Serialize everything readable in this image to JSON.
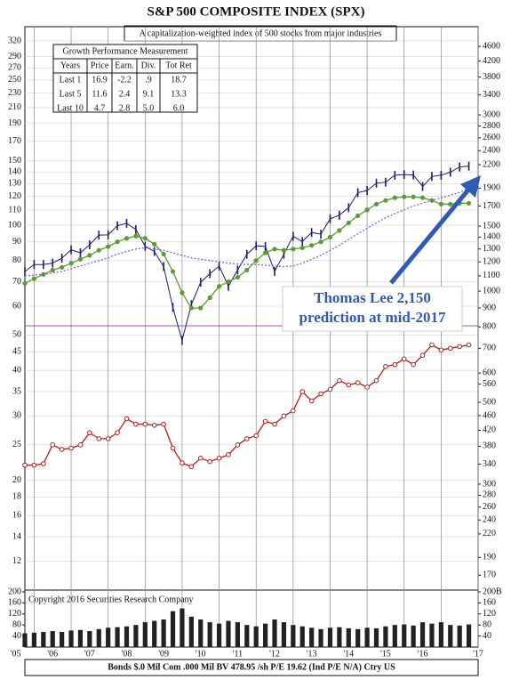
{
  "chart_data": [
    {
      "type": "line",
      "title": "S&P 500 COMPOSITE INDEX (SPX)",
      "subtitle": "A capitalization-weighted index of 500 stocks from major industries",
      "annotation": "Thomas Lee 2,150",
      "annotation_2": "prediction at mid-2017",
      "footer": "Bonds  $.0 Mil Com .000 Mil BV 478.95 /sh  P/E 19.62 (Ind  P/E N/A) Ctry US",
      "log_scale": true,
      "grid": true,
      "xlim": [
        2004.75,
        2017.0
      ],
      "xticks": [
        {
          "value": 2005,
          "label": "'05"
        },
        {
          "value": 2006,
          "label": "'06"
        },
        {
          "value": 2007,
          "label": "'07"
        },
        {
          "value": 2008,
          "label": "'08"
        },
        {
          "value": 2009,
          "label": "'09"
        },
        {
          "value": 2010,
          "label": "'10"
        },
        {
          "value": 2011,
          "label": "'11"
        },
        {
          "value": 2012,
          "label": "'12"
        },
        {
          "value": 2013,
          "label": "'13"
        },
        {
          "value": 2014,
          "label": "'14"
        },
        {
          "value": 2015,
          "label": "'15"
        },
        {
          "value": 2016,
          "label": "'16"
        },
        {
          "value": 2017,
          "label": "'17"
        }
      ],
      "ylim": [
        10,
        350
      ],
      "yticks": [
        320,
        290,
        270,
        250,
        230,
        210,
        190,
        170,
        150,
        140,
        130,
        120,
        110,
        100,
        90,
        80,
        70,
        60,
        50,
        45,
        40,
        35,
        30,
        25,
        20,
        18,
        16,
        14,
        12
      ],
      "y2lim": [
        155,
        5200
      ],
      "y2ticks": [
        4600,
        4200,
        3800,
        3400,
        3000,
        2800,
        2600,
        2400,
        2200,
        1900,
        1700,
        1500,
        1400,
        1300,
        1200,
        1100,
        1000,
        900,
        800,
        700,
        600,
        560,
        500,
        460,
        420,
        380,
        340,
        300,
        280,
        260,
        240,
        220,
        190,
        170
      ],
      "hline": 53,
      "hline_color": "#8a4a8a",
      "x": [
        2004.75,
        2005,
        2005.25,
        2005.5,
        2005.75,
        2006,
        2006.25,
        2006.5,
        2006.75,
        2007,
        2007.25,
        2007.5,
        2007.75,
        2008,
        2008.25,
        2008.5,
        2008.75,
        2009,
        2009.25,
        2009.5,
        2009.75,
        2010,
        2010.25,
        2010.5,
        2010.75,
        2011,
        2011.25,
        2011.5,
        2011.75,
        2012,
        2012.25,
        2012.5,
        2012.75,
        2013,
        2013.25,
        2013.5,
        2013.75,
        2014,
        2014.25,
        2014.5,
        2014.75,
        2015,
        2015.25,
        2015.5,
        2015.75,
        2016,
        2016.25,
        2016.5,
        2016.75
      ],
      "series": [
        {
          "color": "#1c1c6e",
          "axis": "y2",
          "marker": "bar",
          "values": [
            1130,
            1180,
            1180,
            1191,
            1228,
            1294,
            1270,
            1335,
            1418,
            1420,
            1503,
            1526,
            1468,
            1322,
            1280,
            1166,
            903,
            735,
            919,
            1057,
            1115,
            1169,
            1031,
            1141,
            1258,
            1326,
            1321,
            1131,
            1258,
            1408,
            1362,
            1441,
            1426,
            1569,
            1606,
            1682,
            1848,
            1872,
            1960,
            1972,
            2059,
            2068,
            2063,
            1920,
            2044,
            2060,
            2099,
            2168,
            2180
          ]
        },
        {
          "color": "#5b9b32",
          "axis": "y2",
          "marker": "dot",
          "values": [
            1050,
            1080,
            1110,
            1140,
            1160,
            1190,
            1220,
            1250,
            1290,
            1320,
            1360,
            1390,
            1410,
            1390,
            1340,
            1260,
            1130,
            990,
            900,
            900,
            960,
            1030,
            1060,
            1090,
            1140,
            1210,
            1270,
            1300,
            1290,
            1300,
            1310,
            1330,
            1360,
            1400,
            1460,
            1530,
            1600,
            1660,
            1720,
            1760,
            1790,
            1800,
            1800,
            1790,
            1760,
            1720,
            1720,
            1730,
            1730
          ]
        },
        {
          "color": "#6a6ae6",
          "axis": "y2",
          "marker": "none",
          "dashed": true,
          "values": [
            1100,
            1105,
            1110,
            1120,
            1130,
            1150,
            1170,
            1190,
            1210,
            1230,
            1260,
            1280,
            1300,
            1310,
            1300,
            1290,
            1270,
            1250,
            1230,
            1220,
            1210,
            1200,
            1190,
            1185,
            1180,
            1180,
            1175,
            1170,
            1165,
            1170,
            1190,
            1220,
            1250,
            1290,
            1330,
            1380,
            1430,
            1480,
            1530,
            1580,
            1620,
            1660,
            1700,
            1730,
            1760,
            1790,
            1820,
            1850,
            1900
          ]
        },
        {
          "color": "#b02020",
          "axis": "y",
          "marker": "circle",
          "values": [
            22,
            22,
            22.2,
            25,
            24.3,
            24.5,
            25,
            27,
            26,
            26,
            27,
            29.5,
            28.5,
            28.5,
            28.3,
            28.5,
            24.5,
            22.3,
            21.8,
            23,
            22.5,
            23,
            23.5,
            25,
            26,
            26.5,
            29,
            28.5,
            30,
            31,
            35,
            33,
            34.5,
            35.5,
            37.5,
            36.5,
            37,
            36,
            37.5,
            41,
            41.5,
            43,
            41.5,
            44,
            47,
            45.5,
            46,
            46.5,
            47
          ]
        }
      ],
      "table": {
        "title": "Growth Performance Measurement",
        "header": [
          "Years",
          "Price",
          "Earn.",
          "Div.",
          "Tot Ret"
        ],
        "rows": [
          [
            "Last 1",
            "16.9",
            "-2.2",
            ".9",
            "18.7"
          ],
          [
            "Last 5",
            "11.6",
            "2.4",
            "9.1",
            "13.3"
          ],
          [
            "Last 10",
            "4.7",
            "2.8",
            "5.0",
            "6.0"
          ]
        ]
      }
    },
    {
      "type": "bar",
      "annotation": "Copyright 2016 Securities Research Company",
      "color": "#222",
      "xlim": [
        2004.75,
        2017.0
      ],
      "x": [
        2004.75,
        2005,
        2005.25,
        2005.5,
        2005.75,
        2006,
        2006.25,
        2006.5,
        2006.75,
        2007,
        2007.25,
        2007.5,
        2007.75,
        2008,
        2008.25,
        2008.5,
        2008.75,
        2009,
        2009.25,
        2009.5,
        2009.75,
        2010,
        2010.25,
        2010.5,
        2010.75,
        2011,
        2011.25,
        2011.5,
        2011.75,
        2012,
        2012.25,
        2012.5,
        2012.75,
        2013,
        2013.25,
        2013.5,
        2013.75,
        2014,
        2014.25,
        2014.5,
        2014.75,
        2015,
        2015.25,
        2015.5,
        2015.75,
        2016,
        2016.25,
        2016.5,
        2016.75
      ],
      "values": [
        50,
        52,
        55,
        58,
        55,
        60,
        62,
        58,
        65,
        70,
        72,
        75,
        80,
        90,
        95,
        100,
        130,
        140,
        110,
        100,
        90,
        85,
        95,
        90,
        80,
        75,
        85,
        100,
        90,
        80,
        75,
        70,
        65,
        70,
        72,
        68,
        65,
        70,
        68,
        75,
        80,
        82,
        78,
        90,
        85,
        90,
        80,
        78,
        82
      ],
      "ylim": [
        0,
        200
      ],
      "yticks": [
        200,
        160,
        120,
        80,
        40
      ],
      "y2lim": [
        0,
        200
      ],
      "y2ticks": [
        {
          "value": 200,
          "label": "200B"
        },
        160,
        120,
        80,
        40
      ]
    }
  ]
}
